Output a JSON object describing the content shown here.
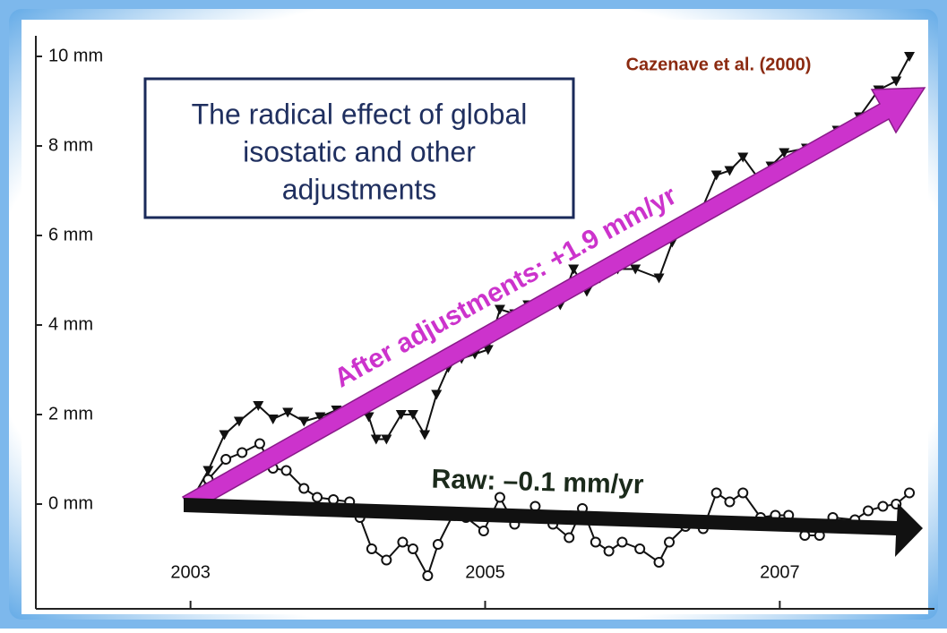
{
  "chart_data": {
    "type": "line",
    "source": "Cazenave et al. (2000)",
    "box_text": [
      "The radical effect of global",
      "isostatic and other",
      "adjustments"
    ],
    "annotations": [
      "After adjustments: +1.9 mm/yr",
      "Raw: –0.1 mm/yr"
    ],
    "xlim": [
      2001.95,
      2008.05
    ],
    "xticks": [
      2003,
      2005,
      2007
    ],
    "ylim": [
      -2.34,
      10.46
    ],
    "yticks": [
      {
        "value": 0,
        "label": "0 mm"
      },
      {
        "value": 2,
        "label": "2 mm"
      },
      {
        "value": 4,
        "label": "4 mm"
      },
      {
        "value": 6,
        "label": "6 mm"
      },
      {
        "value": 8,
        "label": "8 mm"
      },
      {
        "value": 10,
        "label": "10 mm"
      }
    ],
    "series": [
      {
        "color": "#111111",
        "marker": "triangle",
        "x": [
          2003.0,
          2003.12,
          2003.23,
          2003.33,
          2003.46,
          2003.56,
          2003.66,
          2003.77,
          2003.88,
          2003.99,
          2004.11,
          2004.21,
          2004.26,
          2004.33,
          2004.43,
          2004.51,
          2004.59,
          2004.67,
          2004.75,
          2004.84,
          2004.93,
          2005.02,
          2005.1,
          2005.2,
          2005.29,
          2005.41,
          2005.51,
          2005.6,
          2005.69,
          2005.78,
          2005.9,
          2006.02,
          2006.18,
          2006.27,
          2006.33,
          2006.44,
          2006.57,
          2006.66,
          2006.75,
          2006.86,
          2006.94,
          2007.03,
          2007.18,
          2007.39,
          2007.54,
          2007.67,
          2007.79,
          2007.88
        ],
        "values": [
          0.05,
          0.75,
          1.55,
          1.85,
          2.2,
          1.9,
          2.05,
          1.85,
          1.95,
          2.1,
          2.15,
          1.95,
          1.45,
          1.45,
          2.0,
          2.0,
          1.55,
          2.45,
          3.05,
          3.25,
          3.35,
          3.45,
          4.35,
          4.25,
          4.45,
          4.55,
          4.45,
          5.25,
          4.75,
          5.05,
          5.25,
          5.25,
          5.05,
          5.85,
          6.15,
          6.35,
          7.35,
          7.45,
          7.75,
          7.25,
          7.55,
          7.85,
          7.95,
          8.35,
          8.65,
          9.25,
          9.45,
          10.0
        ]
      },
      {
        "color": "#111111",
        "marker": "circle",
        "x": [
          2003.0,
          2003.12,
          2003.24,
          2003.35,
          2003.47,
          2003.56,
          2003.65,
          2003.77,
          2003.86,
          2003.97,
          2004.08,
          2004.15,
          2004.23,
          2004.33,
          2004.44,
          2004.51,
          2004.61,
          2004.68,
          2004.78,
          2004.87,
          2004.99,
          2005.1,
          2005.2,
          2005.34,
          2005.46,
          2005.57,
          2005.66,
          2005.75,
          2005.84,
          2005.93,
          2006.05,
          2006.18,
          2006.25,
          2006.36,
          2006.48,
          2006.57,
          2006.66,
          2006.75,
          2006.87,
          2006.97,
          2007.06,
          2007.17,
          2007.27,
          2007.36,
          2007.51,
          2007.6,
          2007.7,
          2007.79,
          2007.88
        ],
        "values": [
          0,
          0.55,
          1.0,
          1.15,
          1.35,
          0.8,
          0.75,
          0.35,
          0.15,
          0.1,
          0.05,
          -0.3,
          -1.0,
          -1.25,
          -0.85,
          -1.0,
          -1.6,
          -0.9,
          -0.25,
          -0.3,
          -0.6,
          0.15,
          -0.45,
          -0.05,
          -0.45,
          -0.75,
          -0.1,
          -0.85,
          -1.05,
          -0.85,
          -1.0,
          -1.3,
          -0.85,
          -0.5,
          -0.55,
          0.25,
          0.05,
          0.25,
          -0.3,
          -0.25,
          -0.25,
          -0.7,
          -0.7,
          -0.3,
          -0.35,
          -0.15,
          -0.05,
          0.0,
          0.25
        ]
      }
    ]
  }
}
